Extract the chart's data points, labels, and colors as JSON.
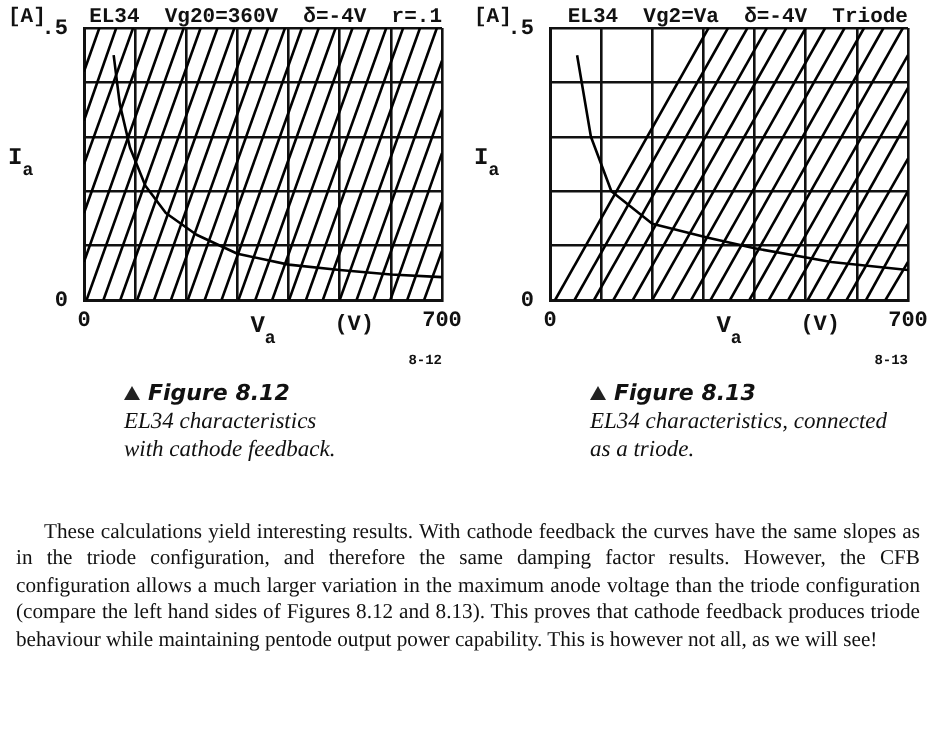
{
  "chart_data": [
    {
      "type": "line",
      "title": "EL34  Vg20=360V  δ=-4V  r=.1",
      "xlabel": "V$_{a}$",
      "ylabel": "I$_{a}$",
      "xlim": [
        0,
        700
      ],
      "ylim": [
        0,
        0.5
      ],
      "xticks": [
        {
          "value": 0,
          "label": "0"
        },
        {
          "value": 100,
          "label": null
        },
        {
          "value": 200,
          "label": null
        },
        {
          "value": 300,
          "label": null
        },
        {
          "value": 400,
          "label": null
        },
        {
          "value": 500,
          "label": null
        },
        {
          "value": 600,
          "label": null
        },
        700
      ],
      "yticks": [
        {
          "value": 0,
          "label": "0"
        },
        {
          "value": 0.1,
          "label": null
        },
        {
          "value": 0.2,
          "label": null
        },
        {
          "value": 0.3,
          "label": null
        },
        {
          "value": 0.4,
          "label": null
        },
        {
          "value": 0.5,
          "label": ".5"
        }
      ],
      "grid": true,
      "annotations": [
        "[A]",
        "(V)",
        "8-12",
        "Figure 8.12",
        "EL34 characteristics",
        "with cathode feedback."
      ],
      "series": [
        {
          "color": "#000000",
          "x": [
            0,
            30
          ],
          "values": [
            0.42,
            0.5
          ]
        },
        {
          "color": "#000000",
          "x": [
            0,
            63
          ],
          "values": [
            0.33,
            0.5
          ]
        },
        {
          "color": "#000000",
          "x": [
            0,
            96
          ],
          "values": [
            0.25,
            0.5
          ]
        },
        {
          "color": "#000000",
          "x": [
            0,
            129
          ],
          "values": [
            0.16,
            0.5
          ]
        },
        {
          "color": "#000000",
          "x": [
            0,
            162
          ],
          "values": [
            0.07,
            0.5
          ]
        },
        {
          "color": "#000000",
          "x": [
            5,
            195
          ],
          "values": [
            0,
            0.5
          ]
        },
        {
          "color": "#000000",
          "x": [
            38,
            228
          ],
          "values": [
            0,
            0.5
          ]
        },
        {
          "color": "#000000",
          "x": [
            71,
            261
          ],
          "values": [
            0,
            0.5
          ]
        },
        {
          "color": "#000000",
          "x": [
            104,
            294
          ],
          "values": [
            0,
            0.5
          ]
        },
        {
          "color": "#000000",
          "x": [
            137,
            327
          ],
          "values": [
            0,
            0.5
          ]
        },
        {
          "color": "#000000",
          "x": [
            170,
            360
          ],
          "values": [
            0,
            0.5
          ]
        },
        {
          "color": "#000000",
          "x": [
            203,
            393
          ],
          "values": [
            0,
            0.5
          ]
        },
        {
          "color": "#000000",
          "x": [
            236,
            426
          ],
          "values": [
            0,
            0.5
          ]
        },
        {
          "color": "#000000",
          "x": [
            269,
            459
          ],
          "values": [
            0,
            0.5
          ]
        },
        {
          "color": "#000000",
          "x": [
            302,
            492
          ],
          "values": [
            0,
            0.5
          ]
        },
        {
          "color": "#000000",
          "x": [
            335,
            525
          ],
          "values": [
            0,
            0.5
          ]
        },
        {
          "color": "#000000",
          "x": [
            368,
            558
          ],
          "values": [
            0,
            0.5
          ]
        },
        {
          "color": "#000000",
          "x": [
            401,
            591
          ],
          "values": [
            0,
            0.5
          ]
        },
        {
          "color": "#000000",
          "x": [
            434,
            624
          ],
          "values": [
            0,
            0.5
          ]
        },
        {
          "color": "#000000",
          "x": [
            467,
            657
          ],
          "values": [
            0,
            0.5
          ]
        },
        {
          "color": "#000000",
          "x": [
            500,
            690
          ],
          "values": [
            0,
            0.5
          ]
        },
        {
          "color": "#000000",
          "x": [
            533,
            700
          ],
          "values": [
            0,
            0.44
          ]
        },
        {
          "color": "#000000",
          "x": [
            566,
            700
          ],
          "values": [
            0,
            0.35
          ]
        },
        {
          "color": "#000000",
          "x": [
            599,
            700
          ],
          "values": [
            0,
            0.27
          ]
        },
        {
          "color": "#000000",
          "x": [
            632,
            700
          ],
          "values": [
            0,
            0.18
          ]
        },
        {
          "color": "#000000",
          "x": [
            665,
            700
          ],
          "values": [
            0,
            0.09
          ]
        },
        {
          "color": "#000000",
          "x": [
            58,
            70,
            90,
            120,
            160,
            220,
            300,
            400,
            500,
            600,
            700
          ],
          "values": [
            0.45,
            0.36,
            0.28,
            0.21,
            0.16,
            0.12,
            0.085,
            0.065,
            0.055,
            0.047,
            0.042
          ]
        }
      ]
    },
    {
      "type": "line",
      "title": "EL34  Vg2=Va  δ=-4V  Triode",
      "xlabel": "V$_{a}$",
      "ylabel": "I$_{a}$",
      "xlim": [
        0,
        700
      ],
      "ylim": [
        0,
        0.5
      ],
      "xticks": [
        {
          "value": 0,
          "label": "0"
        },
        {
          "value": 100,
          "label": null
        },
        {
          "value": 200,
          "label": null
        },
        {
          "value": 300,
          "label": null
        },
        {
          "value": 400,
          "label": null
        },
        {
          "value": 500,
          "label": null
        },
        {
          "value": 600,
          "label": null
        },
        700
      ],
      "yticks": [
        {
          "value": 0,
          "label": "0"
        },
        {
          "value": 0.1,
          "label": null
        },
        {
          "value": 0.2,
          "label": null
        },
        {
          "value": 0.3,
          "label": null
        },
        {
          "value": 0.4,
          "label": null
        },
        {
          "value": 0.5,
          "label": ".5"
        }
      ],
      "grid": true,
      "annotations": [
        "[A]",
        "(V)",
        "8-13",
        "Figure 8.13",
        "EL34 characteristics, connected",
        "as a triode."
      ],
      "series": [
        {
          "color": "#000000",
          "x": [
            10,
            310
          ],
          "values": [
            0,
            0.5
          ]
        },
        {
          "color": "#000000",
          "x": [
            48,
            348
          ],
          "values": [
            0,
            0.5
          ]
        },
        {
          "color": "#000000",
          "x": [
            86,
            386
          ],
          "values": [
            0,
            0.5
          ]
        },
        {
          "color": "#000000",
          "x": [
            124,
            424
          ],
          "values": [
            0,
            0.5
          ]
        },
        {
          "color": "#000000",
          "x": [
            162,
            462
          ],
          "values": [
            0,
            0.5
          ]
        },
        {
          "color": "#000000",
          "x": [
            200,
            500
          ],
          "values": [
            0,
            0.5
          ]
        },
        {
          "color": "#000000",
          "x": [
            238,
            538
          ],
          "values": [
            0,
            0.5
          ]
        },
        {
          "color": "#000000",
          "x": [
            276,
            576
          ],
          "values": [
            0,
            0.5
          ]
        },
        {
          "color": "#000000",
          "x": [
            314,
            614
          ],
          "values": [
            0,
            0.5
          ]
        },
        {
          "color": "#000000",
          "x": [
            352,
            652
          ],
          "values": [
            0,
            0.5
          ]
        },
        {
          "color": "#000000",
          "x": [
            390,
            690
          ],
          "values": [
            0,
            0.5
          ]
        },
        {
          "color": "#000000",
          "x": [
            428,
            700
          ],
          "values": [
            0,
            0.45
          ]
        },
        {
          "color": "#000000",
          "x": [
            466,
            700
          ],
          "values": [
            0,
            0.39
          ]
        },
        {
          "color": "#000000",
          "x": [
            504,
            700
          ],
          "values": [
            0,
            0.33
          ]
        },
        {
          "color": "#000000",
          "x": [
            542,
            700
          ],
          "values": [
            0,
            0.26
          ]
        },
        {
          "color": "#000000",
          "x": [
            580,
            700
          ],
          "values": [
            0,
            0.2
          ]
        },
        {
          "color": "#000000",
          "x": [
            618,
            700
          ],
          "values": [
            0,
            0.14
          ]
        },
        {
          "color": "#000000",
          "x": [
            656,
            700
          ],
          "values": [
            0,
            0.07
          ]
        },
        {
          "color": "#000000",
          "x": [
            53,
            80,
            120,
            200,
            307,
            400,
            550,
            700
          ],
          "values": [
            0.45,
            0.3,
            0.2,
            0.14,
            0.115,
            0.095,
            0.07,
            0.055
          ]
        }
      ]
    },
    {
      "type": "other",
      "annotations": [
        "These calculations yield interesting results. With cathode feedback the curves have the same slopes as in the triode configuration, and therefore the same damping factor results. However, the CFB configuration allows a much larger variation in the maximum anode voltage than the triode configuration (compare the left hand sides of Figures 8.12 and 8.13). This proves that cathode feedback produces triode behaviour while maintaining pentode output power capability. This is however not all, as we will see!"
      ]
    }
  ]
}
